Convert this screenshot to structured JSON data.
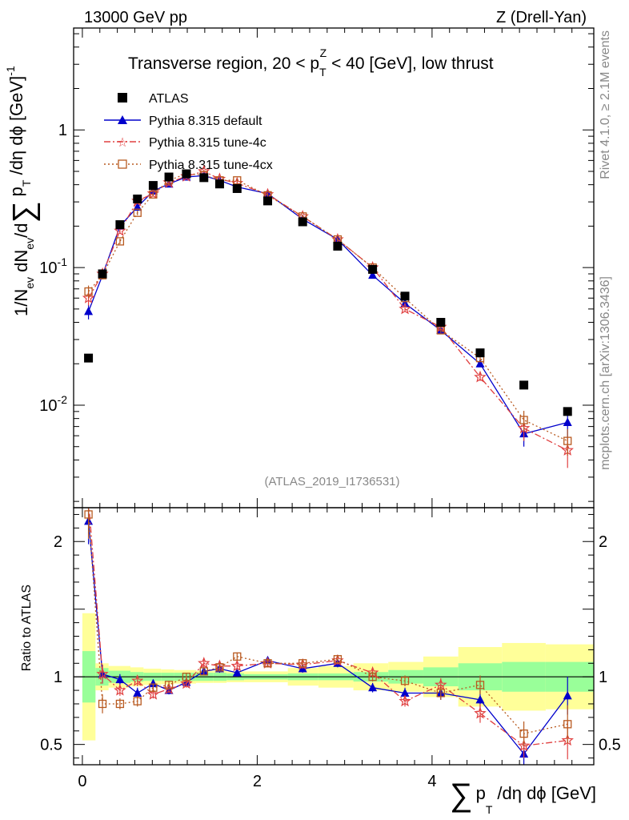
{
  "header": {
    "left": "13000 GeV pp",
    "right": "Z (Drell-Yan)"
  },
  "side_labels": {
    "rivet": "Rivet 4.1.0, ≥ 2.1M events",
    "mcplots": "mcplots.cern.ch [arXiv:1306.3436]"
  },
  "chart_data": {
    "type": "scatter",
    "title": "Transverse region, 20 < p_T^Z < 40 [GeV], low thrust",
    "title_parts": {
      "prefix": "Transverse region, 20 < p",
      "sub": "T",
      "sup": "Z",
      "suffix": " < 40 [GeV], low thrust"
    },
    "analysis_id": "(ATLAS_2019_I1736531)",
    "xlabel": "∑ p_T /dη dϕ [GeV]",
    "xlabel_parts": {
      "sum": "∑",
      "p": "p",
      "sub": "T",
      "rest": "/dη dϕ [GeV]"
    },
    "ylabel": "1/N_ev dN_ev/d∑ p_T /dη dϕ [GeV]^-1",
    "ylabel_parts": {
      "a": "1/N",
      "ev": "ev",
      "b": " dN",
      "c": "/d",
      "sum": "∑",
      "p": " p",
      "t": "T",
      "d": " /dη dϕ  [GeV]",
      "exp": "-1"
    },
    "ratio_ylabel": "Ratio to ATLAS",
    "xlim": [
      -0.1,
      5.85
    ],
    "ylim": [
      0.0018,
      5.5
    ],
    "ratio_ylim": [
      0.35,
      2.25
    ],
    "x_ticks": [
      {
        "value": 0,
        "label": "0"
      },
      {
        "value": 2,
        "label": "2"
      },
      {
        "value": 4,
        "label": "4"
      }
    ],
    "y_ticks": [
      {
        "value": 0.01,
        "mant": "10",
        "exp": "-2"
      },
      {
        "value": 0.1,
        "mant": "10",
        "exp": "-1"
      },
      {
        "value": 1,
        "mant": "1",
        "exp": ""
      }
    ],
    "ratio_ticks": [
      {
        "value": 0.5,
        "label": "0.5"
      },
      {
        "value": 1,
        "label": "1"
      },
      {
        "value": 2,
        "label": "2"
      }
    ],
    "legend": {
      "position": "top-left"
    },
    "bins": [
      [
        0,
        0.15
      ],
      [
        0.15,
        0.3
      ],
      [
        0.3,
        0.55
      ],
      [
        0.55,
        0.7
      ],
      [
        0.7,
        0.9
      ],
      [
        0.9,
        1.05
      ],
      [
        1.05,
        1.3
      ],
      [
        1.3,
        1.5
      ],
      [
        1.5,
        1.65
      ],
      [
        1.65,
        1.85
      ],
      [
        1.85,
        2.35
      ],
      [
        2.35,
        2.7
      ],
      [
        2.7,
        3.1
      ],
      [
        3.1,
        3.5
      ],
      [
        3.5,
        3.9
      ],
      [
        3.9,
        4.3
      ],
      [
        4.3,
        4.8
      ],
      [
        4.8,
        5.3
      ],
      [
        5.3,
        5.85
      ]
    ],
    "x": [
      0.07,
      0.23,
      0.43,
      0.63,
      0.81,
      0.99,
      1.19,
      1.39,
      1.57,
      1.77,
      2.12,
      2.52,
      2.92,
      3.32,
      3.69,
      4.1,
      4.55,
      5.05,
      5.55
    ],
    "band_stat": [
      0.19,
      0.065,
      0.045,
      0.035,
      0.03,
      0.03,
      0.03,
      0.03,
      0.03,
      0.025,
      0.02,
      0.025,
      0.025,
      0.035,
      0.05,
      0.07,
      0.1,
      0.11,
      0.11
    ],
    "band_total": [
      0.47,
      0.1,
      0.08,
      0.07,
      0.06,
      0.055,
      0.05,
      0.045,
      0.045,
      0.04,
      0.04,
      0.065,
      0.08,
      0.1,
      0.11,
      0.15,
      0.22,
      0.25,
      0.24
    ],
    "series": [
      {
        "name": "ATLAS",
        "marker": "square",
        "color": "#000000",
        "line": "none",
        "values": [
          0.022,
          0.09,
          0.205,
          0.315,
          0.395,
          0.455,
          0.48,
          0.45,
          0.405,
          0.375,
          0.305,
          0.215,
          0.143,
          0.097,
          0.062,
          0.04,
          0.024,
          0.014,
          0.009
        ],
        "ratio": [
          1,
          1,
          1,
          1,
          1,
          1,
          1,
          1,
          1,
          1,
          1,
          1,
          1,
          1,
          1,
          1,
          1,
          1,
          1
        ]
      },
      {
        "name": "Pythia 8.315 default",
        "marker": "triangle",
        "color": "#0000cc",
        "line": "solid",
        "values": [
          0.048,
          0.088,
          0.2,
          0.275,
          0.36,
          0.405,
          0.455,
          0.465,
          0.43,
          0.385,
          0.345,
          0.225,
          0.16,
          0.088,
          0.055,
          0.035,
          0.02,
          0.0062,
          0.0075
        ],
        "errors": [
          0.006,
          0.006,
          0.008,
          0.01,
          0.01,
          0.012,
          0.014,
          0.014,
          0.013,
          0.012,
          0.01,
          0.007,
          0.005,
          0.003,
          0.002,
          0.0015,
          0.001,
          0.0012,
          0.0017
        ],
        "ratio": [
          2.15,
          1.02,
          0.98,
          0.88,
          0.95,
          0.9,
          0.96,
          1.04,
          1.06,
          1.03,
          1.12,
          1.06,
          1.1,
          0.92,
          0.88,
          0.88,
          0.83,
          0.43,
          0.86
        ],
        "ratio_err": [
          0.17,
          0.07,
          0.04,
          0.04,
          0.03,
          0.03,
          0.03,
          0.03,
          0.03,
          0.03,
          0.03,
          0.03,
          0.03,
          0.035,
          0.04,
          0.05,
          0.07,
          0.09,
          0.14
        ]
      },
      {
        "name": "Pythia 8.315 tune-4c",
        "marker": "star",
        "color": "#e04040",
        "line": "dashdot",
        "values": [
          0.06,
          0.09,
          0.185,
          0.305,
          0.345,
          0.415,
          0.46,
          0.5,
          0.44,
          0.41,
          0.34,
          0.235,
          0.16,
          0.1,
          0.05,
          0.037,
          0.016,
          0.0068,
          0.0047
        ],
        "errors": [
          0.007,
          0.006,
          0.008,
          0.011,
          0.011,
          0.012,
          0.014,
          0.015,
          0.013,
          0.012,
          0.01,
          0.007,
          0.005,
          0.003,
          0.002,
          0.0015,
          0.001,
          0.0013,
          0.0012
        ],
        "ratio": [
          2.3,
          1.02,
          0.9,
          0.97,
          0.87,
          0.91,
          0.95,
          1.1,
          1.08,
          1.08,
          1.1,
          1.09,
          1.12,
          1.03,
          0.82,
          0.94,
          0.73,
          0.49,
          0.53
        ],
        "ratio_err": [
          0.19,
          0.07,
          0.04,
          0.04,
          0.03,
          0.03,
          0.03,
          0.03,
          0.03,
          0.03,
          0.03,
          0.03,
          0.03,
          0.035,
          0.04,
          0.05,
          0.07,
          0.09,
          0.14
        ]
      },
      {
        "name": "Pythia 8.315 tune-4cx",
        "marker": "open-square",
        "color": "#b85a20",
        "line": "dotted",
        "values": [
          0.067,
          0.088,
          0.155,
          0.25,
          0.34,
          0.43,
          0.48,
          0.47,
          0.43,
          0.43,
          0.335,
          0.235,
          0.16,
          0.1,
          0.06,
          0.035,
          0.022,
          0.0078,
          0.0055
        ],
        "errors": [
          0.007,
          0.006,
          0.007,
          0.01,
          0.011,
          0.012,
          0.014,
          0.014,
          0.013,
          0.012,
          0.01,
          0.007,
          0.005,
          0.003,
          0.002,
          0.0015,
          0.001,
          0.0013,
          0.0012
        ],
        "ratio": [
          2.2,
          0.8,
          0.8,
          0.82,
          0.92,
          0.94,
          1.0,
          1.04,
          1.07,
          1.15,
          1.1,
          1.1,
          1.13,
          1.0,
          0.97,
          0.88,
          0.94,
          0.58,
          0.65
        ],
        "ratio_err": [
          0.18,
          0.07,
          0.04,
          0.04,
          0.03,
          0.03,
          0.03,
          0.03,
          0.03,
          0.03,
          0.03,
          0.03,
          0.03,
          0.035,
          0.04,
          0.05,
          0.07,
          0.09,
          0.14
        ]
      }
    ]
  }
}
